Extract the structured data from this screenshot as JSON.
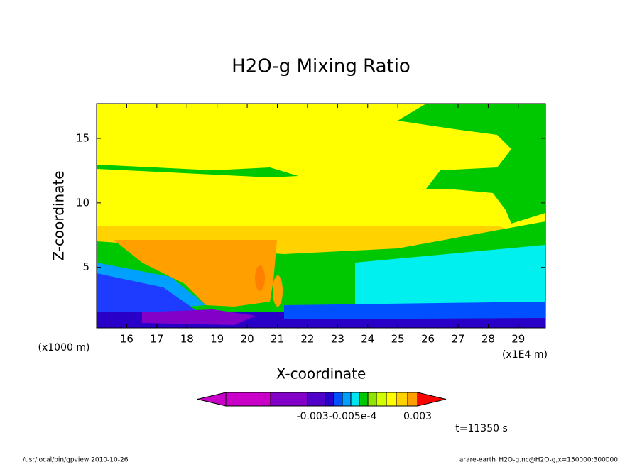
{
  "chart_data": {
    "type": "contour",
    "title": "H2O-g Mixing Ratio",
    "x_label": "X-coordinate",
    "y_label": "Z-coordinate",
    "x_unit": "(x1E4 m)",
    "y_unit": "(x1000 m)",
    "xlim": [
      15,
      29.9
    ],
    "ylim": [
      0.3,
      17.7
    ],
    "xticks": [
      16,
      17,
      18,
      19,
      20,
      21,
      22,
      23,
      24,
      25,
      26,
      27,
      28,
      29
    ],
    "yticks": [
      5,
      10,
      15
    ],
    "colorbar_colors": [
      "#c800c8",
      "#c800c8",
      "#8200c8",
      "#5000c8",
      "#2800c8",
      "#0050ff",
      "#00a0ff",
      "#00e6f0",
      "#00c800",
      "#8ce600",
      "#d2ff00",
      "#ffff00",
      "#ffd200",
      "#ffa000",
      "#ff0000"
    ],
    "colorbar_labels": [
      "-0.003-0.005e-4",
      "0.003"
    ],
    "time_label": "t=11350 s",
    "footer_left": "/usr/local/bin/gpview  2010-10-26",
    "footer_right": "arare-earth_H2O-g.nc@H2O-g,x=150000:300000"
  }
}
